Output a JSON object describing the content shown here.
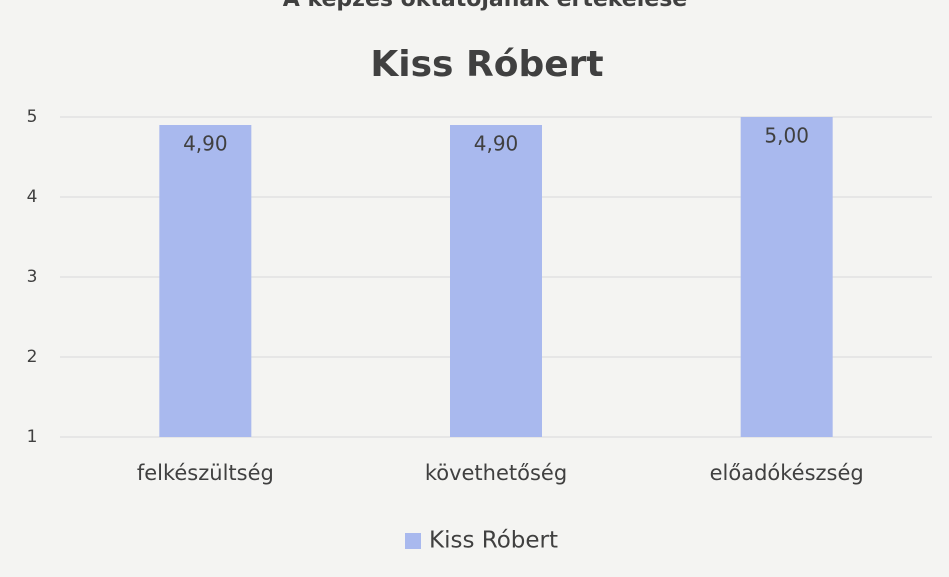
{
  "chart_data": {
    "type": "bar",
    "header": "A képzés oktatójának értékelése",
    "title": "Kiss Róbert",
    "categories": [
      "felkészültség",
      "követhetőség",
      "előadókészség"
    ],
    "series": [
      {
        "name": "Kiss Róbert",
        "color": "#a9b9ee",
        "values": [
          4.9,
          4.9,
          5.0
        ],
        "value_labels": [
          "4,90",
          "4,90",
          "5,00"
        ]
      }
    ],
    "ylim": [
      1,
      5
    ],
    "yticks": [
      1,
      2,
      3,
      4,
      5
    ],
    "grid": true,
    "legend": "bottom"
  }
}
